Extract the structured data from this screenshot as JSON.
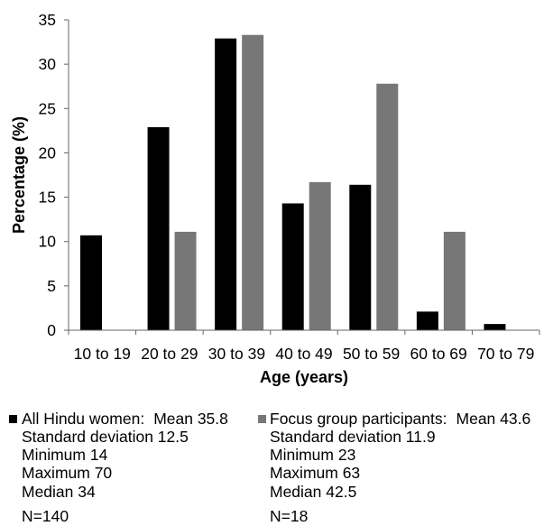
{
  "chart_data": {
    "type": "bar",
    "xlabel": "Age (years)",
    "ylabel": "Percentage (%)",
    "ylim": [
      0,
      35
    ],
    "yticks": [
      0,
      5,
      10,
      15,
      20,
      25,
      30,
      35
    ],
    "grid": false,
    "categories": [
      "10 to 19",
      "20 to 29",
      "30 to 39",
      "40 to 49",
      "50 to 59",
      "60 to 69",
      "70 to 79"
    ],
    "series": [
      {
        "name": "All Hindu women",
        "color": "#000000",
        "values": [
          10.7,
          22.9,
          32.9,
          14.3,
          16.4,
          2.1,
          0.7
        ]
      },
      {
        "name": "Focus group participants",
        "color": "#777777",
        "values": [
          0,
          11.1,
          33.3,
          16.7,
          27.8,
          11.1,
          0
        ]
      }
    ],
    "legend": {
      "placement": "bottom",
      "entries": [
        {
          "name_suffix": ":",
          "mean": "Mean 35.8",
          "sd": "Standard deviation 12.5",
          "min": "Minimum 14",
          "max": "Maximum 70",
          "median": "Median 34",
          "n": "N=140"
        },
        {
          "name_suffix": ":",
          "mean": "Mean 43.6",
          "sd": "Standard deviation 11.9",
          "min": "Minimum 23",
          "max": "Maximum 63",
          "median": "Median 42.5",
          "n": "N=18"
        }
      ]
    }
  }
}
